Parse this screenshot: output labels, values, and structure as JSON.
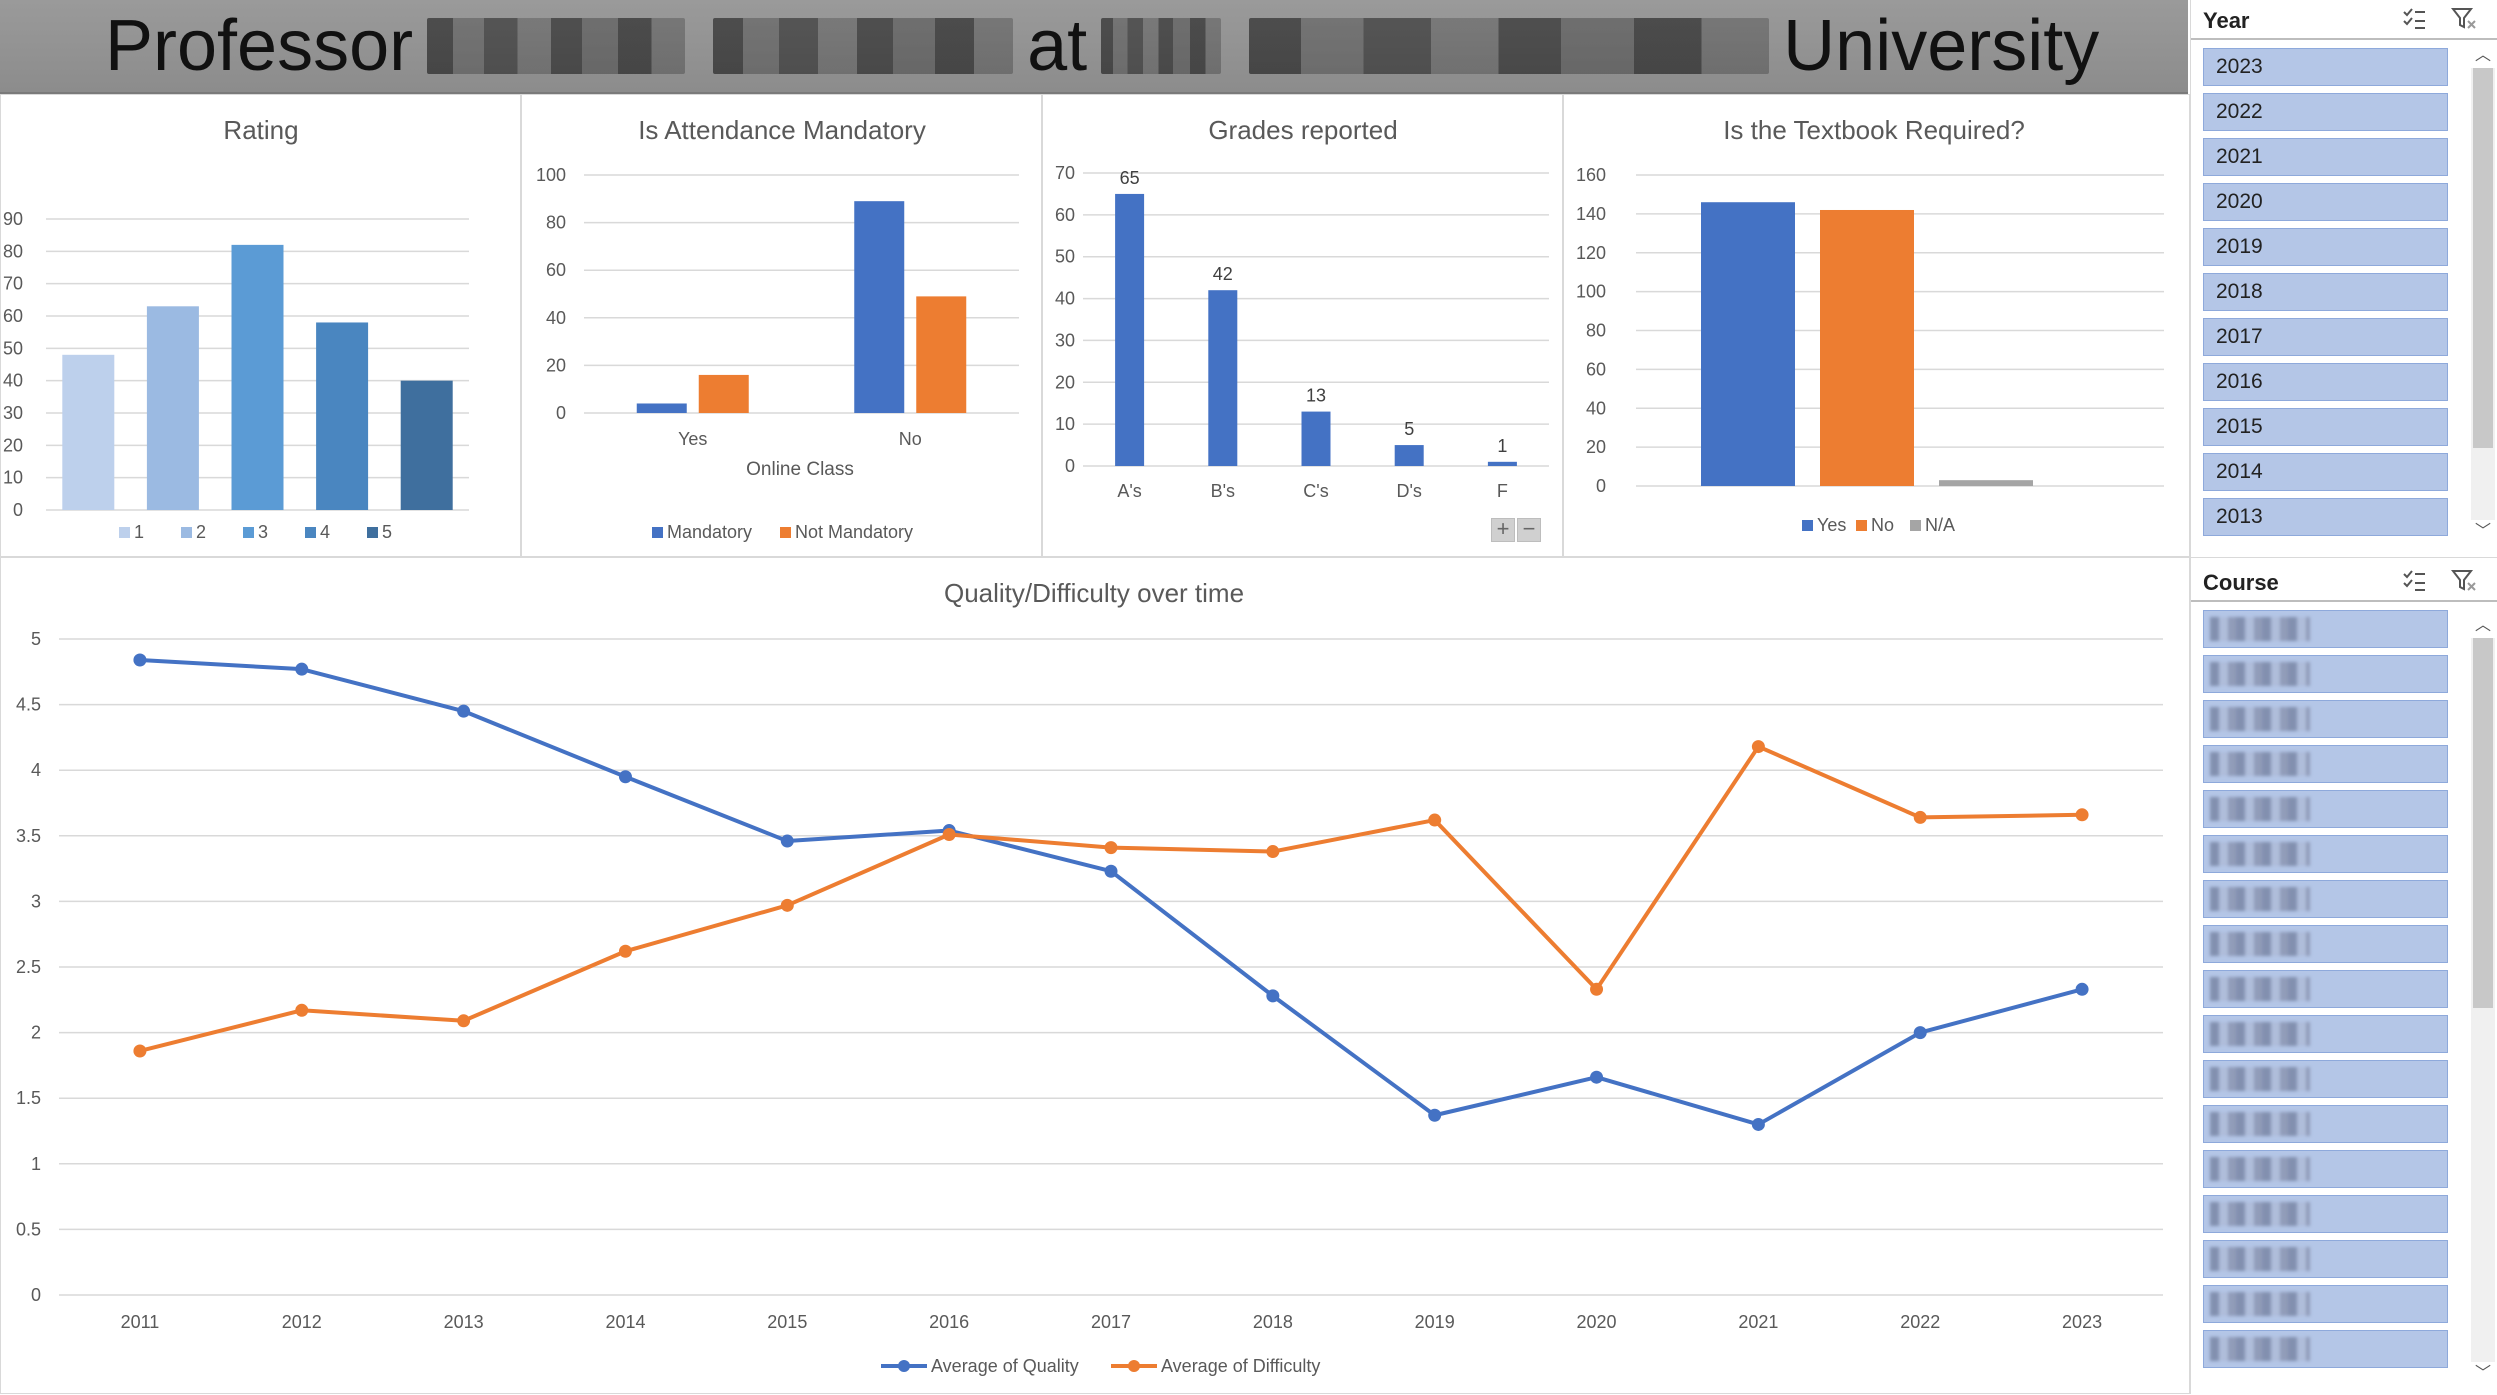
{
  "banner": {
    "word1": "Professor",
    "word2": "at",
    "word3": "University"
  },
  "chart_data": [
    {
      "id": "rating",
      "type": "bar",
      "title": "Rating",
      "categories": [
        "1",
        "2",
        "3",
        "4",
        "5"
      ],
      "values": [
        48,
        63,
        82,
        58,
        40
      ],
      "colors": [
        "#bdd0ec",
        "#9bbae2",
        "#5b9bd5",
        "#4a86c0",
        "#3f6f9e"
      ],
      "ylim": [
        0,
        90
      ],
      "yticks": [
        0,
        10,
        20,
        30,
        40,
        50,
        60,
        70,
        80,
        90
      ],
      "legend": [
        "1",
        "2",
        "3",
        "4",
        "5"
      ]
    },
    {
      "id": "attendance",
      "type": "bar",
      "title": "Is Attendance Mandatory",
      "categories": [
        "Yes",
        "No"
      ],
      "xlabel": "Online Class",
      "series": [
        {
          "name": "Mandatory",
          "values": [
            4,
            89
          ],
          "color": "#4472c4"
        },
        {
          "name": "Not Mandatory",
          "values": [
            16,
            49
          ],
          "color": "#ed7d31"
        }
      ],
      "ylim": [
        0,
        100
      ],
      "yticks": [
        0,
        20,
        40,
        60,
        80,
        100
      ]
    },
    {
      "id": "grades",
      "type": "bar",
      "title": "Grades reported",
      "categories": [
        "A's",
        "B's",
        "C's",
        "D's",
        "F"
      ],
      "values": [
        65,
        42,
        13,
        5,
        1
      ],
      "color": "#4472c4",
      "ylim": [
        0,
        70
      ],
      "yticks": [
        0,
        10,
        20,
        30,
        40,
        50,
        60,
        70
      ]
    },
    {
      "id": "textbook",
      "type": "bar",
      "title": "Is the Textbook Required?",
      "categories": [
        "Yes",
        "No",
        "N/A"
      ],
      "values": [
        146,
        142,
        3
      ],
      "colors": [
        "#4472c4",
        "#ed7d31",
        "#a5a5a5"
      ],
      "ylim": [
        0,
        160
      ],
      "yticks": [
        0,
        20,
        40,
        60,
        80,
        100,
        120,
        140,
        160
      ],
      "legend": [
        "Yes",
        "No",
        "N/A"
      ]
    },
    {
      "id": "quality",
      "type": "line",
      "title": "Quality/Difficulty over time",
      "x": [
        "2011",
        "2012",
        "2013",
        "2014",
        "2015",
        "2016",
        "2017",
        "2018",
        "2019",
        "2020",
        "2021",
        "2022",
        "2023"
      ],
      "series": [
        {
          "name": "Average of Quality",
          "values": [
            4.84,
            4.77,
            4.45,
            3.95,
            3.46,
            3.54,
            3.23,
            2.28,
            1.37,
            1.66,
            1.3,
            2.0,
            2.33
          ],
          "color": "#4472c4"
        },
        {
          "name": "Average of Difficulty",
          "values": [
            1.86,
            2.17,
            2.09,
            2.62,
            2.97,
            3.51,
            3.41,
            3.38,
            3.62,
            2.33,
            4.18,
            3.64,
            3.66
          ],
          "color": "#ed7d31"
        }
      ],
      "ylim": [
        0,
        5
      ],
      "yticks": [
        "0",
        "0.5",
        "1",
        "1.5",
        "2",
        "2.5",
        "3",
        "3.5",
        "4",
        "4.5",
        "5"
      ]
    }
  ],
  "slicers": {
    "year": {
      "title": "Year",
      "items": [
        "2023",
        "2022",
        "2021",
        "2020",
        "2019",
        "2018",
        "2017",
        "2016",
        "2015",
        "2014",
        "2013"
      ]
    },
    "course": {
      "title": "Course",
      "item_count": 17
    }
  },
  "icons": {
    "multiselect": "multi-select-icon",
    "clear_filter": "clear-filter-icon",
    "scroll_up": "scroll-up-icon",
    "scroll_down": "scroll-down-icon"
  }
}
